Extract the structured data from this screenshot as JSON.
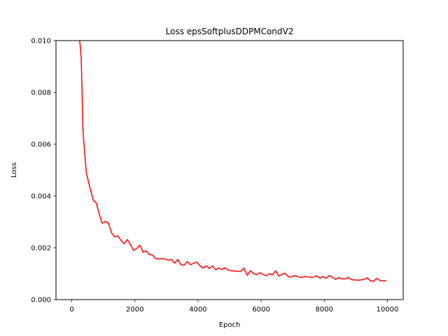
{
  "chart_data": {
    "type": "line",
    "title": "Loss epsSoftplusDDPMCondV2",
    "xlabel": "Epoch",
    "ylabel": "Loss",
    "xlim": [
      -500,
      10500
    ],
    "ylim": [
      0,
      0.01
    ],
    "xticks": [
      0,
      2000,
      4000,
      6000,
      8000,
      10000
    ],
    "xtick_labels": [
      "0",
      "2000",
      "4000",
      "6000",
      "8000",
      "10000"
    ],
    "yticks": [
      0,
      0.002,
      0.004,
      0.006,
      0.008,
      0.01
    ],
    "ytick_labels": [
      "0.000",
      "0.002",
      "0.004",
      "0.006",
      "0.008",
      "0.010"
    ],
    "grid": false,
    "colors": {
      "series": "#ff0000",
      "axes": "#000000",
      "background": "#ffffff"
    },
    "series": [
      {
        "x": [
          240,
          300,
          360,
          460,
          580,
          680,
          780,
          860,
          960,
          1060,
          1160,
          1260,
          1360,
          1460,
          1560,
          1660,
          1760,
          1860,
          1960,
          2060,
          2160,
          2260,
          2360,
          2460,
          2560,
          2660,
          2760,
          2860,
          2960,
          3060,
          3160,
          3260,
          3360,
          3460,
          3560,
          3660,
          3760,
          3860,
          3960,
          4060,
          4160,
          4260,
          4360,
          4460,
          4560,
          4660,
          4760,
          4860,
          4960,
          5060,
          5160,
          5260,
          5360,
          5460,
          5560,
          5660,
          5760,
          5860,
          5960,
          6060,
          6160,
          6260,
          6360,
          6460,
          6560,
          6660,
          6760,
          6860,
          6960,
          7060,
          7160,
          7260,
          7360,
          7460,
          7560,
          7660,
          7760,
          7860,
          7960,
          8060,
          8160,
          8260,
          8360,
          8460,
          8560,
          8660,
          8760,
          8860,
          8960,
          9060,
          9160,
          9260,
          9360,
          9460,
          9560,
          9660,
          9760,
          9860,
          9960
        ],
        "y": [
          0.0102,
          0.0093,
          0.0064,
          0.0049,
          0.0043,
          0.00385,
          0.00372,
          0.00335,
          0.00295,
          0.00302,
          0.00296,
          0.00258,
          0.00242,
          0.00246,
          0.00228,
          0.00216,
          0.00232,
          0.00212,
          0.0019,
          0.00198,
          0.0021,
          0.00183,
          0.00188,
          0.00174,
          0.00172,
          0.00158,
          0.00157,
          0.00158,
          0.00157,
          0.00152,
          0.00155,
          0.00141,
          0.00155,
          0.00134,
          0.00133,
          0.00147,
          0.00135,
          0.0014,
          0.00145,
          0.00131,
          0.00122,
          0.0013,
          0.0012,
          0.0013,
          0.00115,
          0.00122,
          0.00116,
          0.00123,
          0.00114,
          0.00111,
          0.0011,
          0.00109,
          0.0011,
          0.00121,
          0.00094,
          0.00111,
          0.00101,
          0.00096,
          0.00104,
          0.00097,
          0.00092,
          0.001,
          0.00096,
          0.00111,
          0.00091,
          0.00097,
          0.00102,
          0.00089,
          0.00087,
          0.00093,
          0.00089,
          0.00085,
          0.00089,
          0.00088,
          0.00086,
          0.00087,
          0.00092,
          0.00083,
          0.00089,
          0.00082,
          0.00093,
          0.00086,
          0.00078,
          0.00085,
          0.0008,
          0.0008,
          0.00085,
          0.00077,
          0.00076,
          0.00075,
          0.00076,
          0.00078,
          0.00084,
          0.00073,
          0.0007,
          0.00082,
          0.00074,
          0.00072,
          0.00074
        ]
      }
    ]
  }
}
